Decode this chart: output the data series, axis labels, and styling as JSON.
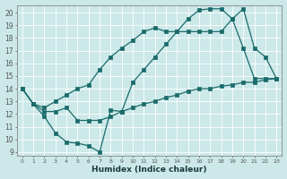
{
  "xlabel": "Humidex (Indice chaleur)",
  "bg_color": "#cce8e8",
  "grid_color": "#aaaaaa",
  "line_color": "#1a6b6b",
  "xlim": [
    -0.5,
    23.5
  ],
  "ylim": [
    8.7,
    20.6
  ],
  "xticks": [
    0,
    1,
    2,
    3,
    4,
    5,
    6,
    7,
    8,
    9,
    10,
    11,
    12,
    13,
    14,
    15,
    16,
    17,
    18,
    19,
    20,
    21,
    22,
    23
  ],
  "yticks": [
    9,
    10,
    11,
    12,
    13,
    14,
    15,
    16,
    17,
    18,
    19,
    20
  ],
  "line1_x": [
    0,
    1,
    2,
    3,
    4,
    5,
    6,
    7,
    8,
    9,
    10,
    11,
    12,
    13,
    14,
    15,
    16,
    17,
    18,
    19,
    20,
    21,
    22,
    23
  ],
  "line1_y": [
    14.0,
    12.8,
    11.8,
    10.5,
    9.8,
    9.7,
    9.5,
    9.0,
    12.3,
    12.2,
    14.5,
    15.5,
    16.5,
    17.5,
    18.5,
    19.5,
    20.2,
    20.3,
    20.3,
    19.5,
    20.3,
    17.2,
    16.5,
    14.8
  ],
  "line2_x": [
    0,
    1,
    2,
    3,
    4,
    5,
    6,
    7,
    8,
    9,
    10,
    11,
    12,
    13,
    14,
    15,
    16,
    17,
    18,
    19,
    20,
    21,
    22,
    23
  ],
  "line2_y": [
    14.0,
    12.8,
    12.5,
    13.0,
    13.5,
    14.0,
    14.3,
    15.5,
    16.5,
    17.2,
    17.8,
    18.5,
    18.8,
    18.5,
    18.5,
    18.5,
    18.5,
    18.5,
    18.5,
    19.5,
    17.2,
    14.8,
    14.8,
    14.8
  ],
  "line3_x": [
    0,
    1,
    2,
    3,
    4,
    5,
    6,
    7,
    8,
    9,
    10,
    11,
    12,
    13,
    14,
    15,
    16,
    17,
    18,
    19,
    20,
    21,
    22,
    23
  ],
  "line3_y": [
    14.0,
    12.8,
    12.2,
    12.2,
    12.5,
    11.5,
    11.5,
    11.5,
    11.8,
    12.2,
    12.5,
    12.8,
    13.0,
    13.3,
    13.5,
    13.8,
    14.0,
    14.0,
    14.2,
    14.3,
    14.5,
    14.5,
    14.7,
    14.8
  ]
}
